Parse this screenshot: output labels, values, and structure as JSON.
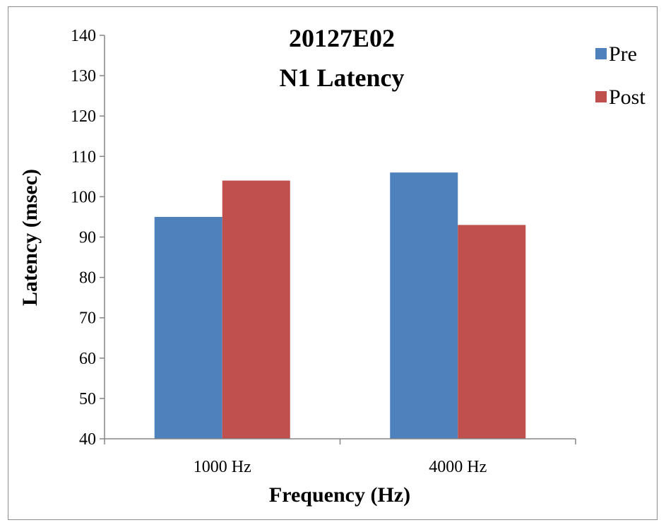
{
  "chart_data": {
    "type": "bar",
    "title": [
      "20127E02",
      "N1 Latency"
    ],
    "xlabel": "Frequency (Hz)",
    "ylabel": "Latency (msec)",
    "categories": [
      "1000 Hz",
      "4000 Hz"
    ],
    "series": [
      {
        "name": "Pre",
        "color": "#4f81bd",
        "values": [
          95,
          106
        ]
      },
      {
        "name": "Post",
        "color": "#c0504d",
        "values": [
          104,
          93
        ]
      }
    ],
    "ylim": [
      40,
      140
    ],
    "yticks": [
      40,
      50,
      60,
      70,
      80,
      90,
      100,
      110,
      120,
      130,
      140
    ],
    "grid": false,
    "legend_position": "right"
  }
}
